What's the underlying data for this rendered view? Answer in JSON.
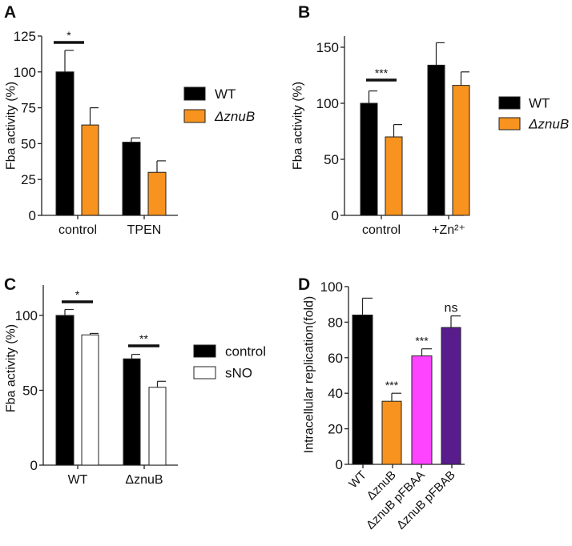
{
  "chart_data": [
    {
      "panel": "A",
      "type": "bar",
      "ylabel": "Fba activity (%)",
      "ylim": [
        0,
        125
      ],
      "yticks": [
        0,
        25,
        50,
        75,
        100,
        125
      ],
      "categories": [
        "control",
        "TPEN"
      ],
      "series": [
        {
          "name": "WT",
          "color": "#000000",
          "values": [
            100,
            51
          ],
          "errors": [
            115,
            54
          ]
        },
        {
          "name": "ΔznuB",
          "color": "#f7931e",
          "values": [
            63,
            30
          ],
          "errors": [
            75,
            38
          ]
        }
      ],
      "significance": [
        {
          "category": "control",
          "label": "*"
        }
      ],
      "legend": "right"
    },
    {
      "panel": "B",
      "type": "bar",
      "ylabel": "Fba activity (%)",
      "ylim": [
        0,
        160
      ],
      "yticks": [
        0,
        50,
        100,
        150
      ],
      "categories": [
        "control",
        "+Zn²⁺"
      ],
      "series": [
        {
          "name": "WT",
          "color": "#000000",
          "values": [
            100,
            134
          ],
          "errors": [
            111,
            154
          ]
        },
        {
          "name": "ΔznuB",
          "color": "#f7931e",
          "values": [
            70,
            116
          ],
          "errors": [
            81,
            128
          ]
        }
      ],
      "significance": [
        {
          "category": "control",
          "label": "***"
        }
      ],
      "legend": "right"
    },
    {
      "panel": "C",
      "type": "bar",
      "ylabel": "Fba activity (%)",
      "ylim": [
        0,
        120
      ],
      "yticks": [
        0,
        50,
        100
      ],
      "categories": [
        "WT",
        "ΔznuB"
      ],
      "series": [
        {
          "name": "control",
          "color": "#000000",
          "values": [
            100,
            71
          ],
          "errors": [
            104,
            74
          ]
        },
        {
          "name": "sNO",
          "color": "#ffffff",
          "values": [
            87,
            52
          ],
          "errors": [
            88,
            56
          ]
        }
      ],
      "significance": [
        {
          "category": "WT",
          "label": "*"
        },
        {
          "category": "ΔznuB",
          "label": "**"
        }
      ],
      "legend": "right"
    },
    {
      "panel": "D",
      "type": "bar",
      "ylabel": "Intracellular replication(fold)",
      "ylim": [
        0,
        100
      ],
      "yticks": [
        0,
        20,
        40,
        60,
        80,
        100
      ],
      "categories": [
        "WT",
        "ΔznuB",
        "ΔznuB pFBAA",
        "ΔznuB pFBAB"
      ],
      "values": [
        84,
        35.5,
        61,
        77
      ],
      "errors": [
        93.5,
        40,
        65,
        83.5
      ],
      "colors": [
        "#000000",
        "#f7931e",
        "#ff44ff",
        "#581c8c"
      ],
      "annotations": [
        "",
        "***",
        "***",
        "ns"
      ]
    }
  ]
}
